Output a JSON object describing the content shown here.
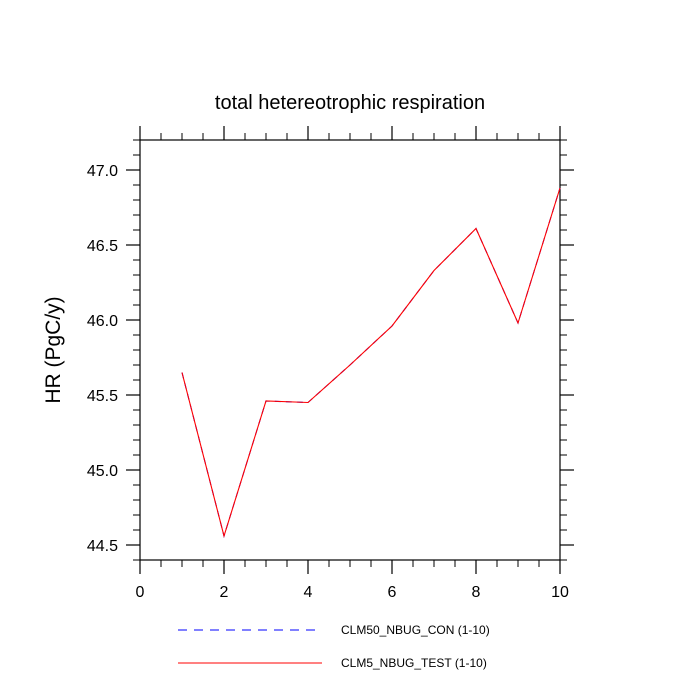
{
  "chart_data": {
    "type": "line",
    "title": "total hetereotrophic respiration",
    "xlabel": "",
    "ylabel": "HR  (PgC/y)",
    "xlim": [
      0,
      10
    ],
    "ylim": [
      44.4,
      47.2
    ],
    "x_ticks": [
      0,
      2,
      4,
      6,
      8,
      10
    ],
    "x_tick_labels": [
      "0",
      "2",
      "4",
      "6",
      "8",
      "10"
    ],
    "y_ticks": [
      44.5,
      45.0,
      45.5,
      46.0,
      46.5,
      47.0
    ],
    "y_tick_labels": [
      "44.5",
      "45.0",
      "45.5",
      "46.0",
      "46.5",
      "47.0"
    ],
    "grid": false,
    "legend_position": "bottom",
    "x": [
      1,
      2,
      3,
      4,
      5,
      6,
      7,
      8,
      9,
      10
    ],
    "series": [
      {
        "name": "CLM50_NBUG_CON (1-10)",
        "color": "#0000ff",
        "style": "dashed",
        "values": [
          45.65,
          44.56,
          45.46,
          45.45,
          45.7,
          45.96,
          46.33,
          46.61,
          45.98,
          46.88
        ]
      },
      {
        "name": "CLM5_NBUG_TEST (1-10)",
        "color": "#ff0000",
        "style": "solid",
        "values": [
          45.65,
          44.56,
          45.46,
          45.45,
          45.7,
          45.96,
          46.33,
          46.61,
          45.98,
          46.88
        ]
      }
    ]
  }
}
